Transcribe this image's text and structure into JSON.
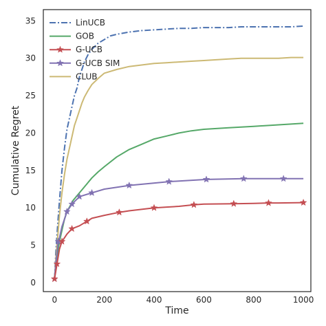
{
  "chart_data": {
    "type": "line",
    "title": "",
    "xlabel": "Time",
    "ylabel": "Cumulative Regret",
    "xlim": [
      -45,
      1030
    ],
    "ylim": [
      -1.2,
      36.5
    ],
    "xticks": [
      0,
      200,
      400,
      600,
      800,
      1000
    ],
    "yticks": [
      0,
      5,
      10,
      15,
      20,
      25,
      30,
      35
    ],
    "grid": false,
    "legend": "top-left",
    "series": [
      {
        "name": "LinUCB",
        "color": "#4c72b0",
        "style": "dashdot",
        "x": [
          0,
          5,
          10,
          20,
          30,
          40,
          50,
          60,
          70,
          80,
          90,
          100,
          110,
          120,
          135,
          150,
          175,
          200,
          225,
          250,
          300,
          350,
          400,
          450,
          500,
          550,
          600,
          650,
          700,
          750,
          800,
          850,
          900,
          950,
          1000
        ],
        "y": [
          0.5,
          4,
          6.5,
          11,
          15,
          18,
          20.5,
          22,
          23.5,
          25,
          26,
          27.5,
          28.5,
          29.5,
          30.5,
          31.2,
          32,
          32.5,
          33,
          33.2,
          33.5,
          33.7,
          33.8,
          33.9,
          34.0,
          34.0,
          34.1,
          34.1,
          34.1,
          34.2,
          34.2,
          34.2,
          34.2,
          34.2,
          34.3
        ]
      },
      {
        "name": "GOB",
        "color": "#55a868",
        "style": "solid",
        "x": [
          0,
          5,
          10,
          20,
          30,
          40,
          50,
          75,
          100,
          125,
          150,
          175,
          200,
          250,
          300,
          350,
          400,
          450,
          500,
          550,
          600,
          650,
          700,
          750,
          800,
          850,
          900,
          950,
          1000
        ],
        "y": [
          0.5,
          2,
          3.5,
          5.5,
          7,
          8.5,
          9.5,
          11,
          12,
          13,
          14,
          14.8,
          15.5,
          16.8,
          17.8,
          18.5,
          19.2,
          19.6,
          20,
          20.3,
          20.5,
          20.6,
          20.7,
          20.8,
          20.9,
          21,
          21.1,
          21.2,
          21.3
        ]
      },
      {
        "name": "G-UCB",
        "color": "#c44e52",
        "style": "solid",
        "marker": "star",
        "markers_x": [
          0,
          10,
          30,
          70,
          130,
          260,
          400,
          560,
          720,
          860,
          1000
        ],
        "x": [
          0,
          5,
          10,
          20,
          30,
          40,
          50,
          70,
          100,
          130,
          150,
          200,
          260,
          300,
          400,
          450,
          500,
          560,
          600,
          720,
          800,
          860,
          900,
          1000
        ],
        "y": [
          0.5,
          1.5,
          2.5,
          4.5,
          5.5,
          6,
          6.5,
          7.2,
          7.6,
          8.2,
          8.6,
          9,
          9.4,
          9.6,
          10,
          10.1,
          10.2,
          10.4,
          10.5,
          10.55,
          10.6,
          10.65,
          10.65,
          10.7
        ]
      },
      {
        "name": "G-UCB SIM",
        "color": "#8172b2",
        "style": "solid",
        "marker": "star",
        "markers_x": [
          0,
          15,
          50,
          70,
          100,
          150,
          300,
          460,
          610,
          760,
          920
        ],
        "x": [
          0,
          5,
          10,
          15,
          20,
          30,
          40,
          50,
          70,
          100,
          150,
          200,
          300,
          460,
          610,
          760,
          920,
          1000
        ],
        "y": [
          0.5,
          2.5,
          4,
          5.5,
          6,
          7.5,
          8.5,
          9.5,
          10.5,
          11.5,
          12,
          12.5,
          13,
          13.5,
          13.8,
          13.9,
          13.9,
          13.9
        ]
      },
      {
        "name": "CLUB",
        "color": "#ccb974",
        "style": "solid",
        "x": [
          0,
          5,
          10,
          20,
          30,
          40,
          50,
          60,
          70,
          80,
          90,
          100,
          110,
          120,
          135,
          150,
          175,
          200,
          250,
          300,
          350,
          400,
          450,
          500,
          550,
          600,
          650,
          700,
          750,
          800,
          850,
          900,
          950,
          1000
        ],
        "y": [
          0.5,
          3,
          5,
          9,
          12,
          14.5,
          16.5,
          18,
          19.5,
          21,
          22,
          23,
          24,
          24.8,
          25.7,
          26.5,
          27.3,
          28,
          28.5,
          28.9,
          29.1,
          29.3,
          29.4,
          29.5,
          29.6,
          29.7,
          29.8,
          29.9,
          30.0,
          30.0,
          30.0,
          30.0,
          30.1,
          30.1
        ]
      }
    ]
  }
}
